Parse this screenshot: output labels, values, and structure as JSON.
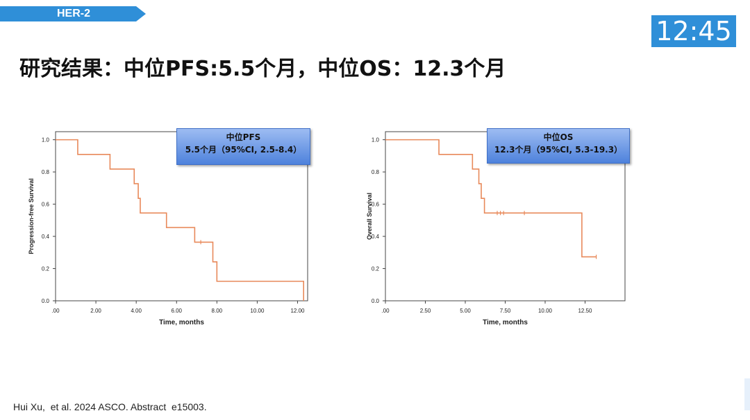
{
  "header": {
    "tag": "HER-2",
    "timer": "12:45",
    "title": "研究结果：中位PFS:5.5个月，中位OS：12.3个月"
  },
  "colors": {
    "accent": "#2f8fd8",
    "curve": "#e8895a",
    "annotation_box": "#5b8ee0"
  },
  "pfs_box": {
    "line1": "中位PFS",
    "line2": "5.5个月（95%CI, 2.5-8.4）"
  },
  "os_box": {
    "line1": "中位OS",
    "line2": "12.3个月（95%CI, 5.3-19.3）"
  },
  "footer": {
    "citation": "Hui Xu,  et al. 2024 ASCO. Abstract  e15003."
  },
  "chart_data": [
    {
      "type": "line",
      "step": true,
      "xlabel": "Time, months",
      "ylabel": "Progression-free Survival",
      "xlim": [
        0,
        12.5
      ],
      "ylim": [
        0,
        1.05
      ],
      "xticks": [
        0,
        2,
        4,
        6,
        8,
        10,
        12
      ],
      "xtick_labels": [
        ".00",
        "2.00",
        "4.00",
        "6.00",
        "8.00",
        "10.00",
        "12.00"
      ],
      "yticks": [
        0,
        0.2,
        0.4,
        0.6,
        0.8,
        1.0
      ],
      "ytick_labels": [
        "0.0",
        "0.2",
        "0.4",
        "0.6",
        "0.8",
        "1.0"
      ],
      "series": [
        {
          "x": [
            0,
            1.1,
            2.7,
            3.9,
            4.1,
            4.2,
            5.5,
            6.9,
            7.8,
            8.0,
            12.3
          ],
          "y": [
            1.0,
            0.909,
            0.818,
            0.727,
            0.636,
            0.545,
            0.455,
            0.364,
            0.242,
            0.121,
            0.0
          ],
          "censored_x": [
            7.2
          ],
          "censored_y": [
            0.364
          ]
        }
      ]
    },
    {
      "type": "line",
      "step": true,
      "xlabel": "Time, months",
      "ylabel": "Overall Survival",
      "xlim": [
        0,
        15
      ],
      "ylim": [
        0,
        1.05
      ],
      "xticks": [
        0,
        2.5,
        5,
        7.5,
        10,
        12.5
      ],
      "xtick_labels": [
        ".00",
        "2.50",
        "5.00",
        "7.50",
        "10.00",
        "12.50"
      ],
      "yticks": [
        0,
        0.2,
        0.4,
        0.6,
        0.8,
        1.0
      ],
      "ytick_labels": [
        "0.0",
        "0.2",
        "0.4",
        "0.6",
        "0.8",
        "1.0"
      ],
      "series": [
        {
          "x": [
            0,
            3.35,
            5.45,
            5.85,
            6.0,
            6.2,
            12.3,
            13.2
          ],
          "y": [
            1.0,
            0.909,
            0.818,
            0.727,
            0.636,
            0.545,
            0.273,
            0.273
          ],
          "censored_x": [
            7.0,
            7.2,
            7.4,
            8.7,
            13.2
          ],
          "censored_y": [
            0.545,
            0.545,
            0.545,
            0.545,
            0.273
          ]
        }
      ]
    }
  ]
}
